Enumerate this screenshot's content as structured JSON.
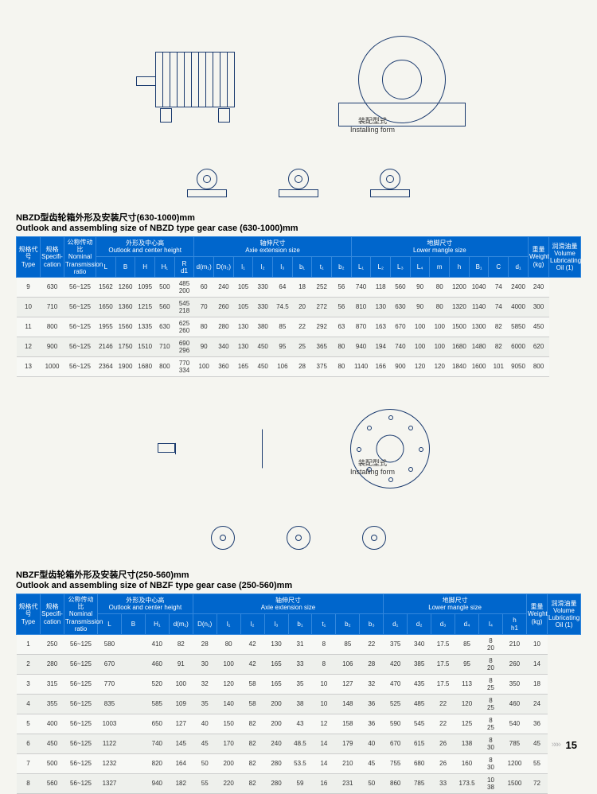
{
  "install": {
    "cn": "装配型式",
    "en": "Installing form"
  },
  "section1": {
    "title_cn": "NBZD型齿轮箱外形及安装尺寸(630-1000)mm",
    "title_en": "Outlook and assembling size of NBZD type gear case (630-1000)mm"
  },
  "section2": {
    "title_cn": "NBZF型齿轮箱外形及安装尺寸(250-560)mm",
    "title_en": "Outlook and assembling size of NBZF type gear case (250-560)mm"
  },
  "t1head": {
    "c0": "规格代号",
    "c0e": "Type",
    "c1": "规格",
    "c1e": "Specifi-\ncation",
    "c2": "公称传动比",
    "c2e": "Nominal\nTransmission\nratio",
    "g1": "外形及中心高",
    "g1e": "Outlook and center height",
    "g2": "轴伸尺寸",
    "g2e": "Axie extension size",
    "g3": "地脚尺寸",
    "g3e": "Lower mangle size",
    "cw": "重量",
    "cwe": "Weight\n(kg)",
    "co": "润滑油量",
    "coe": "Volume\nLubricating\nOil (1)",
    "s": [
      "L",
      "B",
      "H",
      "H₁",
      "R\nd1",
      "d(m₁)",
      "D(n₁)",
      "l₁",
      "l₂",
      "l₃",
      "b₁",
      "t₁",
      "b₂",
      "L₁",
      "L₂",
      "L₃",
      "L₄",
      "m",
      "h",
      "B₁",
      "C",
      "d₁"
    ]
  },
  "t1rows": [
    [
      "9",
      "630",
      "56~125",
      "1562",
      "1260",
      "1095",
      "500",
      "485\n200",
      "60",
      "240",
      "105",
      "330",
      "64",
      "18",
      "252",
      "56",
      "740",
      "118",
      "560",
      "90",
      "80",
      "1200",
      "1040",
      "74",
      "2400",
      "240"
    ],
    [
      "10",
      "710",
      "56~125",
      "1650",
      "1360",
      "1215",
      "560",
      "545\n218",
      "70",
      "260",
      "105",
      "330",
      "74.5",
      "20",
      "272",
      "56",
      "810",
      "130",
      "630",
      "90",
      "80",
      "1320",
      "1140",
      "74",
      "4000",
      "300"
    ],
    [
      "11",
      "800",
      "56~125",
      "1955",
      "1560",
      "1335",
      "630",
      "625\n260",
      "80",
      "280",
      "130",
      "380",
      "85",
      "22",
      "292",
      "63",
      "870",
      "163",
      "670",
      "100",
      "100",
      "1500",
      "1300",
      "82",
      "5850",
      "450"
    ],
    [
      "12",
      "900",
      "56~125",
      "2146",
      "1750",
      "1510",
      "710",
      "690\n296",
      "90",
      "340",
      "130",
      "450",
      "95",
      "25",
      "365",
      "80",
      "940",
      "194",
      "740",
      "100",
      "100",
      "1680",
      "1480",
      "82",
      "6000",
      "620"
    ],
    [
      "13",
      "1000",
      "56~125",
      "2364",
      "1900",
      "1680",
      "800",
      "770\n334",
      "100",
      "360",
      "165",
      "450",
      "106",
      "28",
      "375",
      "80",
      "1140",
      "166",
      "900",
      "120",
      "120",
      "1840",
      "1600",
      "101",
      "9050",
      "800"
    ]
  ],
  "t2head": {
    "s": [
      "L",
      "B",
      "H₁",
      "d(m₁)",
      "D(n₁)",
      "l₁",
      "l₂",
      "l₃",
      "b₁",
      "t₁",
      "b₂",
      "b₃",
      "d₁",
      "d₂",
      "d₃",
      "d₄",
      "l₄",
      "h\nh1"
    ]
  },
  "t2rows": [
    [
      "1",
      "250",
      "56~125",
      "580",
      "",
      "410",
      "82",
      "28",
      "80",
      "42",
      "130",
      "31",
      "8",
      "85",
      "22",
      "375",
      "340",
      "17.5",
      "85",
      "8\n20",
      "210",
      "10"
    ],
    [
      "2",
      "280",
      "56~125",
      "670",
      "",
      "460",
      "91",
      "30",
      "100",
      "42",
      "165",
      "33",
      "8",
      "106",
      "28",
      "420",
      "385",
      "17.5",
      "95",
      "8\n20",
      "260",
      "14"
    ],
    [
      "3",
      "315",
      "56~125",
      "770",
      "",
      "520",
      "100",
      "32",
      "120",
      "58",
      "165",
      "35",
      "10",
      "127",
      "32",
      "470",
      "435",
      "17.5",
      "113",
      "8\n25",
      "350",
      "18"
    ],
    [
      "4",
      "355",
      "56~125",
      "835",
      "",
      "585",
      "109",
      "35",
      "140",
      "58",
      "200",
      "38",
      "10",
      "148",
      "36",
      "525",
      "485",
      "22",
      "120",
      "8\n25",
      "460",
      "24"
    ],
    [
      "5",
      "400",
      "56~125",
      "1003",
      "",
      "650",
      "127",
      "40",
      "150",
      "82",
      "200",
      "43",
      "12",
      "158",
      "36",
      "590",
      "545",
      "22",
      "125",
      "8\n25",
      "540",
      "36"
    ],
    [
      "6",
      "450",
      "56~125",
      "1122",
      "",
      "740",
      "145",
      "45",
      "170",
      "82",
      "240",
      "48.5",
      "14",
      "179",
      "40",
      "670",
      "615",
      "26",
      "138",
      "8\n30",
      "785",
      "45"
    ],
    [
      "7",
      "500",
      "56~125",
      "1232",
      "",
      "820",
      "164",
      "50",
      "200",
      "82",
      "280",
      "53.5",
      "14",
      "210",
      "45",
      "755",
      "680",
      "26",
      "160",
      "8\n30",
      "1200",
      "55"
    ],
    [
      "8",
      "560",
      "56~125",
      "1327",
      "",
      "940",
      "182",
      "55",
      "220",
      "82",
      "280",
      "59",
      "16",
      "231",
      "50",
      "860",
      "785",
      "33",
      "173.5",
      "10\n38",
      "1500",
      "72"
    ]
  ],
  "pagenum": "15"
}
